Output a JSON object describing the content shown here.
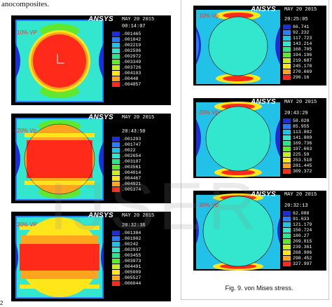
{
  "page": {
    "top_caption": "anocomposites.",
    "figure_caption": "Fig. 9. von Mises stress.",
    "side_mark": "2",
    "watermark": "IJSER"
  },
  "colors": {
    "contour": [
      "#1d2fd4",
      "#2a7dff",
      "#22c2e8",
      "#33e7cf",
      "#2ee58c",
      "#5fe82d",
      "#c8ee22",
      "#ffe61a",
      "#ffa41f",
      "#ff2a1a"
    ]
  },
  "panels": [
    {
      "id": "left-10",
      "logo": "ANSYS",
      "date": "MAY 20 2015",
      "time": "00:14:07",
      "vp": "10% VP",
      "values": [
        ".001465",
        ".001842",
        ".002219",
        ".002596",
        ".002972",
        ".003349",
        ".003726",
        ".004103",
        ".00448",
        ".004857"
      ]
    },
    {
      "id": "left-20",
      "logo": "ANSYS",
      "date": "MAY 20 2015",
      "time": "20:43:50",
      "vp": "20% Vp",
      "values": [
        ".001293",
        ".001747",
        ".0022",
        ".002654",
        ".003107",
        ".003561",
        ".004014",
        ".004467",
        ".004921",
        ".005374"
      ]
    },
    {
      "id": "left-30",
      "logo": "ANSYS",
      "date": "MAY 20 2015",
      "time": "20:32:36",
      "vp": "30% VP",
      "values": [
        ".001384",
        ".001902",
        ".00242",
        ".002937",
        ".003455",
        ".003973",
        ".004491",
        ".005009",
        ".005527",
        ".006044"
      ]
    },
    {
      "id": "right-10",
      "logo": "ANSYS",
      "date": "MAY 20 2015",
      "time": "20:25:05",
      "vp": "10% Vp",
      "values": [
        "66.741",
        "92.232",
        "117.723",
        "143.214",
        "168.705",
        "194.196",
        "219.687",
        "245.178",
        "270.669",
        "296.16"
      ]
    },
    {
      "id": "right-20",
      "logo": "ANSYS",
      "date": "MAY 20 2015",
      "time": "20:43:29",
      "vp": "20% Vp",
      "values": [
        "58.028",
        "85.955",
        "113.882",
        "141.809",
        "169.736",
        "197.663",
        "225.59",
        "253.518",
        "281.445",
        "309.372"
      ]
    },
    {
      "id": "right-30",
      "logo": "ANSYS",
      "date": "MAY 20 2015",
      "time": "20:32:13",
      "vp": "30% Vp",
      "values": [
        "62.088",
        "91.633",
        "121.179",
        "150.724",
        "180.27",
        "209.815",
        "239.361",
        "268.906",
        "298.452",
        "327.997"
      ]
    }
  ]
}
